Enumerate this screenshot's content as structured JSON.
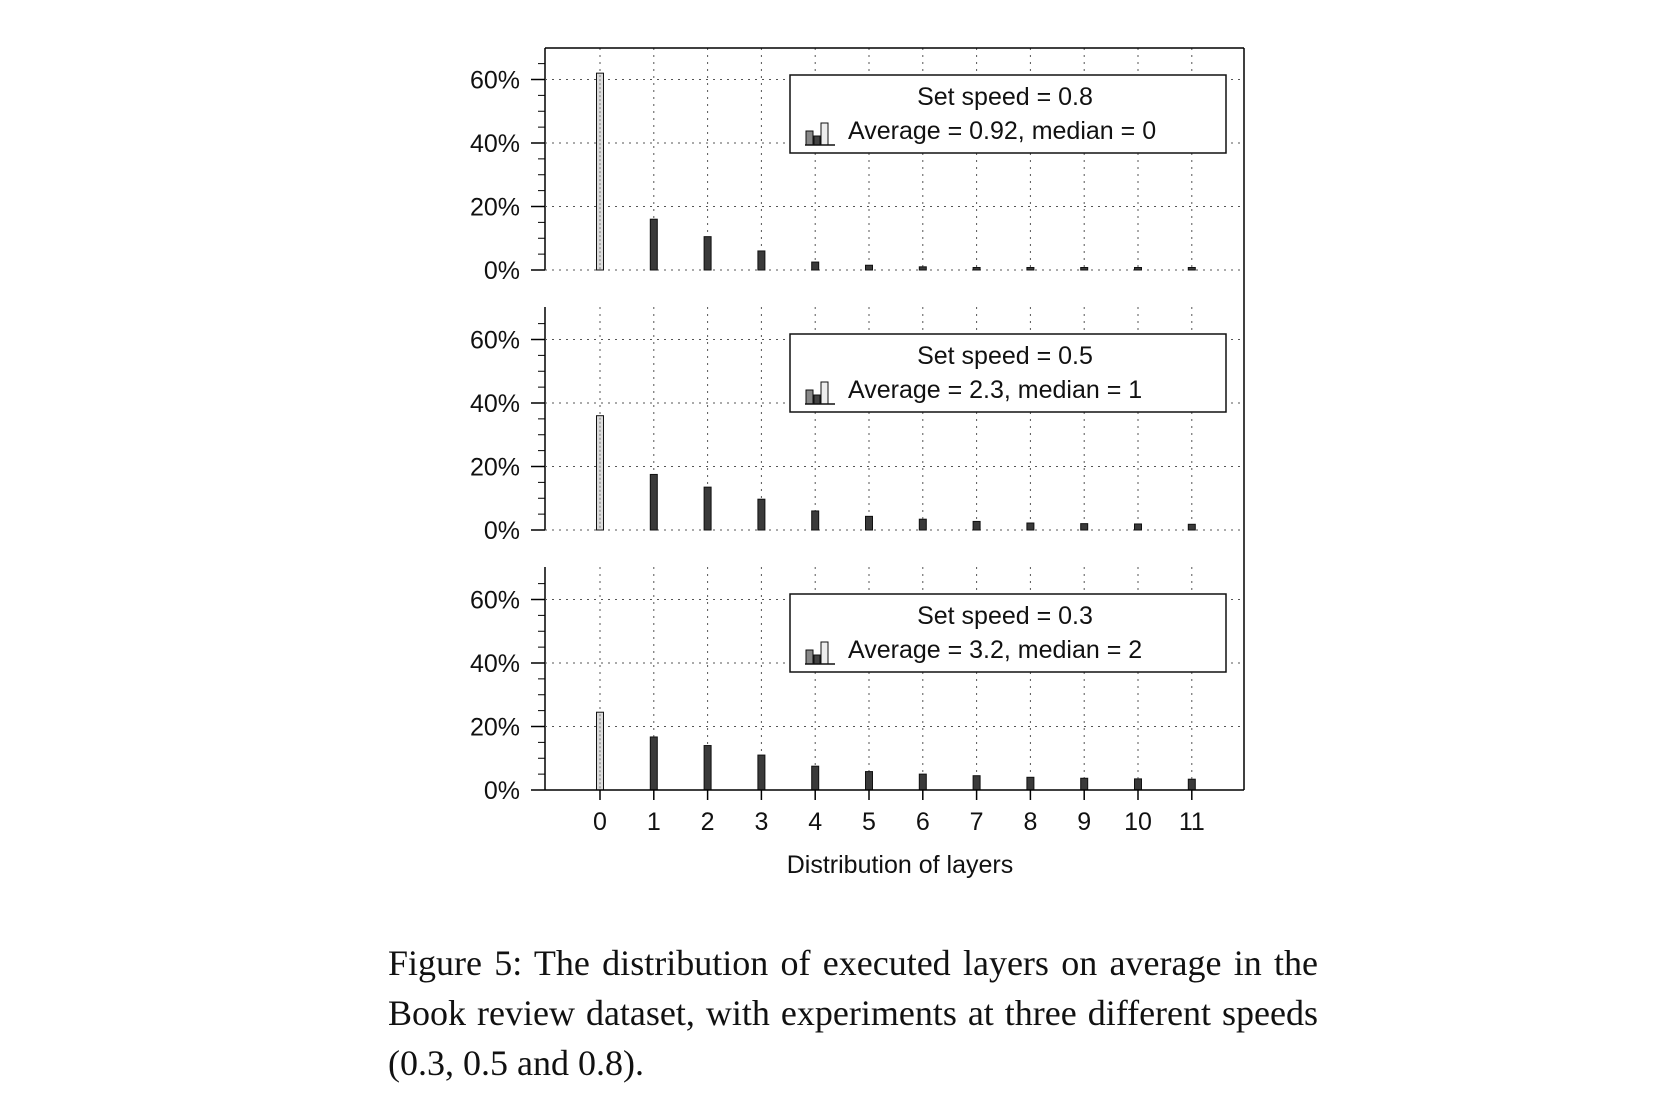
{
  "chart_data": [
    {
      "type": "bar",
      "title": "",
      "xlabel": "",
      "ylabel": "",
      "x": [
        0,
        1,
        2,
        3,
        4,
        5,
        6,
        7,
        8,
        9,
        10,
        11
      ],
      "values": [
        62,
        16,
        10.5,
        6,
        2.5,
        1.5,
        1,
        0.7,
        0.5,
        0.3,
        0.2,
        0.2
      ],
      "ylim": [
        0,
        70
      ],
      "yticks": [
        "0%",
        "20%",
        "40%",
        "60%"
      ],
      "grid": true,
      "legend": {
        "placement": "top-right",
        "line1": "Set speed = 0.8",
        "line2": "Average = 0.92, median = 0"
      }
    },
    {
      "type": "bar",
      "title": "",
      "xlabel": "",
      "ylabel": "",
      "x": [
        0,
        1,
        2,
        3,
        4,
        5,
        6,
        7,
        8,
        9,
        10,
        11
      ],
      "values": [
        36,
        17.5,
        13.5,
        9.7,
        6,
        4.3,
        3.4,
        2.7,
        2.2,
        2,
        1.9,
        1.8
      ],
      "ylim": [
        0,
        70
      ],
      "yticks": [
        "0%",
        "20%",
        "40%",
        "60%"
      ],
      "grid": true,
      "legend": {
        "placement": "top-right",
        "line1": "Set speed = 0.5",
        "line2": "Average = 2.3, median = 1"
      }
    },
    {
      "type": "bar",
      "title": "",
      "xlabel": "Distribution of layers",
      "ylabel": "",
      "x": [
        0,
        1,
        2,
        3,
        4,
        5,
        6,
        7,
        8,
        9,
        10,
        11
      ],
      "x_tick_labels": [
        "0",
        "1",
        "2",
        "3",
        "4",
        "5",
        "6",
        "7",
        "8",
        "9",
        "10",
        "11"
      ],
      "values": [
        24.5,
        16.7,
        14,
        11,
        7.5,
        5.8,
        5,
        4.5,
        4,
        3.7,
        3.5,
        3.4
      ],
      "ylim": [
        0,
        70
      ],
      "yticks": [
        "0%",
        "20%",
        "40%",
        "60%"
      ],
      "grid": true,
      "legend": {
        "placement": "top-right",
        "line1": "Set speed = 0.3",
        "line2": "Average = 3.2, median = 2"
      }
    }
  ],
  "caption": "Figure 5: The distribution of executed layers on average in the Book review dataset, with experiments at three different speeds (0.3, 0.5 and 0.8).",
  "colors": {
    "bar": "#3a3a3a",
    "first_bar": "#dcdcdc",
    "axis": "#000000",
    "grid": "#555555"
  }
}
